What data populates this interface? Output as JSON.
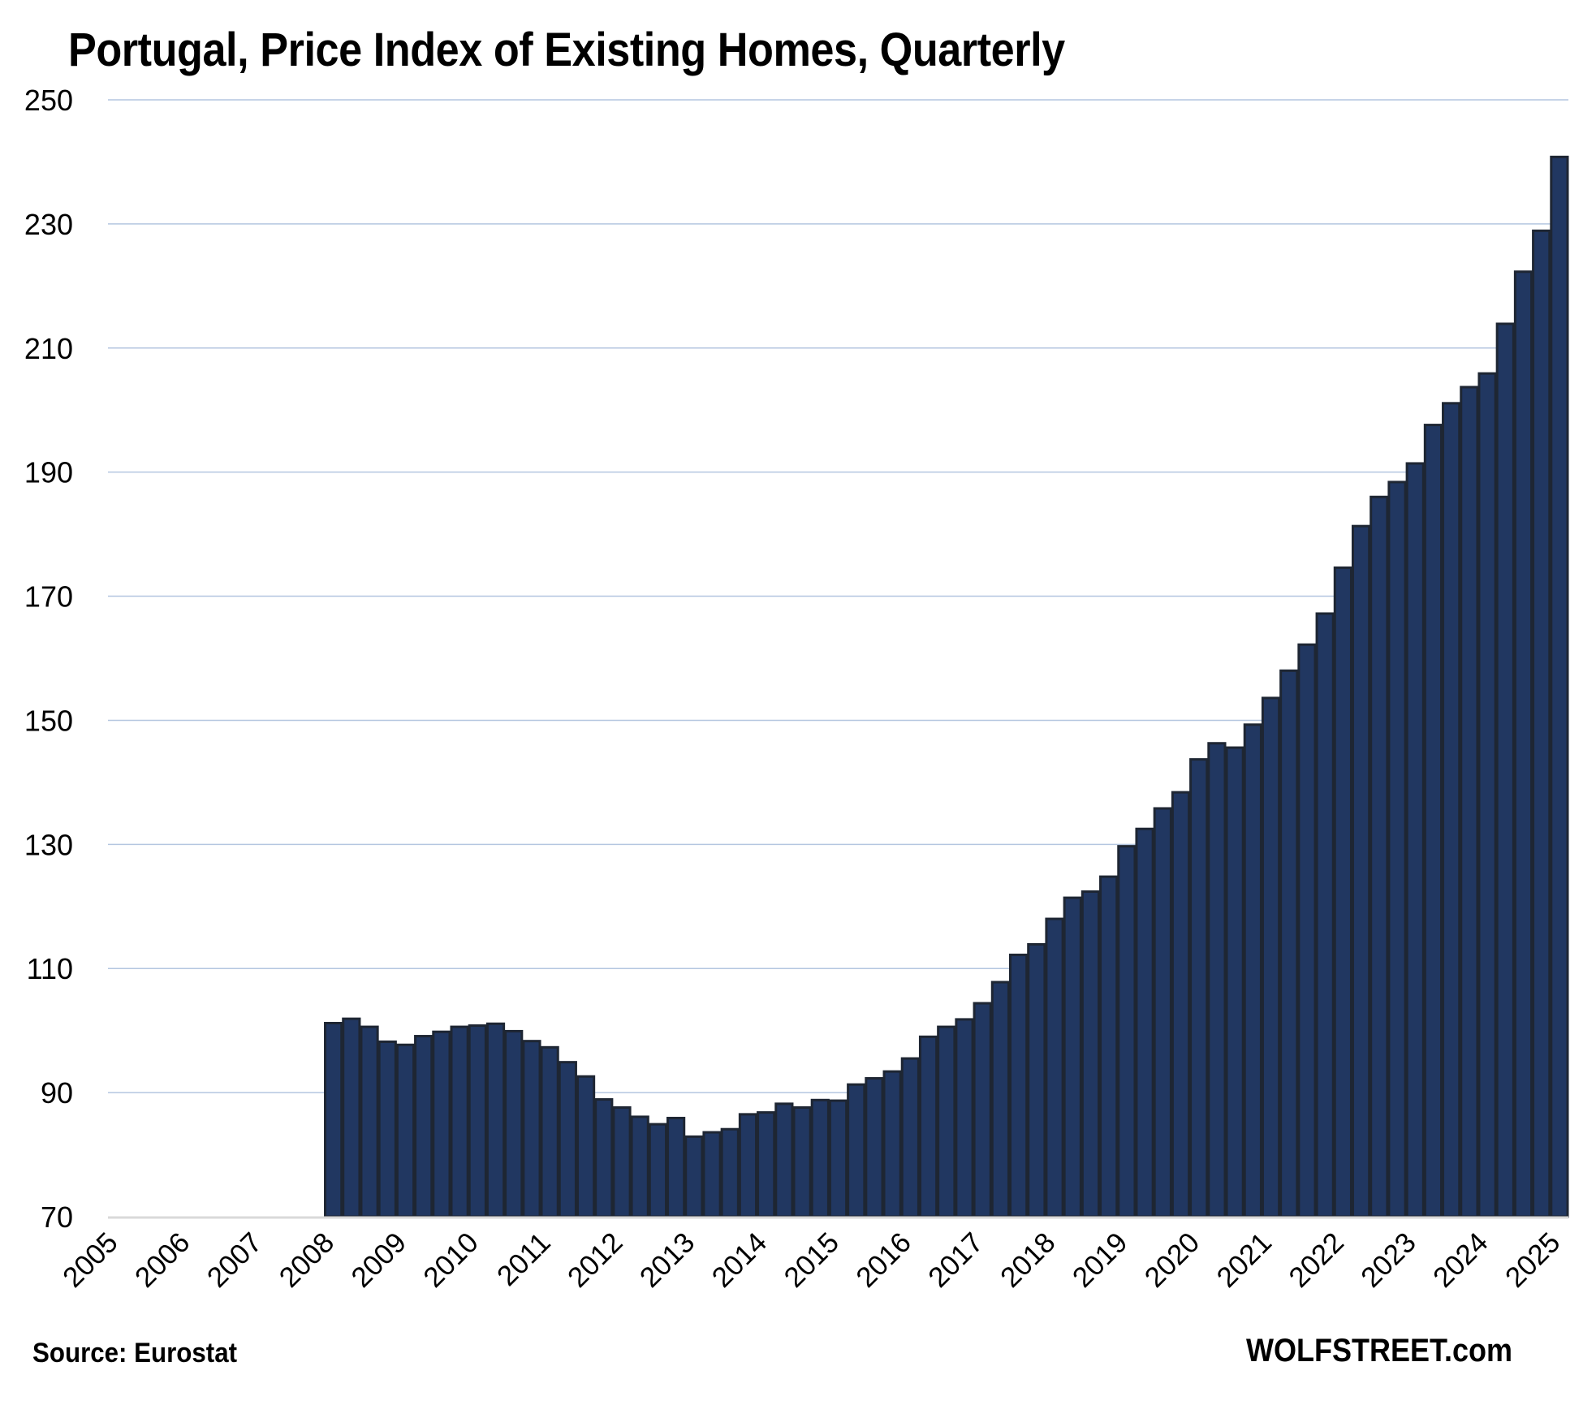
{
  "chart_data": {
    "type": "bar",
    "title": "Portugal, Price Index of Existing Homes, Quarterly",
    "xlabel": "",
    "ylabel": "",
    "ylim": [
      70,
      250
    ],
    "yticks": [
      70,
      90,
      110,
      130,
      150,
      170,
      190,
      210,
      230,
      250
    ],
    "ytick_labels": [
      "70",
      "90",
      "110",
      "130",
      "150",
      "170",
      "190",
      "210",
      "230",
      "250"
    ],
    "x_range": [
      "2005 Q1",
      "2025 Q1"
    ],
    "xtick_labels": [
      "2005",
      "2006",
      "2007",
      "2008",
      "2009",
      "2010",
      "2011",
      "2012",
      "2013",
      "2014",
      "2015",
      "2016",
      "2017",
      "2018",
      "2019",
      "2020",
      "2021",
      "2022",
      "2023",
      "2024",
      "2025"
    ],
    "grid": "horizontal",
    "legend": "none",
    "colors": {
      "bar_fill": "#213761",
      "bar_edge": "#1e2633",
      "gridline": "#b4c6e0",
      "axis_line": "#d9d9d9"
    },
    "series": [
      {
        "name": "Price Index of Existing Homes",
        "start_quarter": "2008 Q1",
        "values": [
          101.2,
          101.9,
          100.6,
          98.2,
          97.7,
          99.1,
          99.8,
          100.6,
          100.8,
          101.1,
          99.9,
          98.3,
          97.3,
          94.9,
          92.6,
          88.9,
          87.6,
          86.1,
          84.9,
          85.9,
          82.9,
          83.6,
          84.1,
          86.5,
          86.8,
          88.2,
          87.6,
          88.8,
          88.7,
          91.3,
          92.3,
          93.4,
          95.5,
          99.0,
          100.6,
          101.8,
          104.4,
          107.8,
          112.2,
          113.9,
          118.0,
          121.4,
          122.4,
          124.8,
          129.7,
          132.5,
          135.8,
          138.4,
          143.7,
          146.3,
          145.6,
          149.3,
          153.6,
          158.0,
          162.2,
          167.2,
          174.6,
          181.3,
          186.0,
          188.4,
          191.4,
          197.6,
          201.1,
          203.7,
          205.9,
          213.9,
          222.3,
          228.9,
          240.8
        ]
      }
    ],
    "source": "Source: Eurostat",
    "watermark": "WOLFSTREET.com"
  }
}
